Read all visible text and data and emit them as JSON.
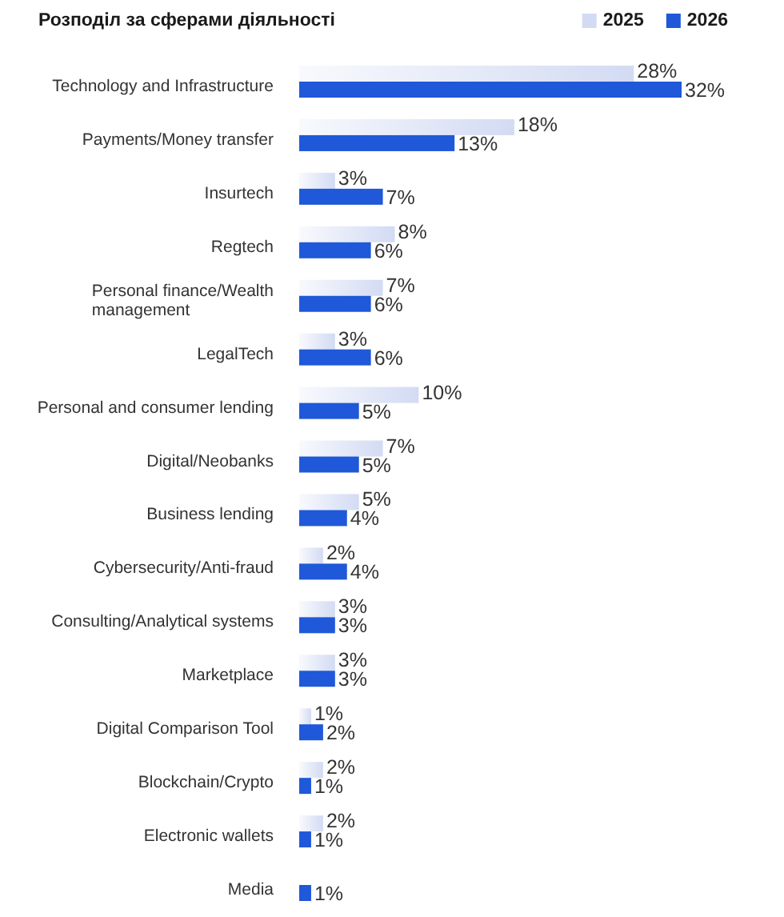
{
  "chart_data": {
    "type": "bar",
    "orientation": "horizontal",
    "title": "Розподіл за сферами діяльності",
    "legend": "top right",
    "categories": [
      "Technology and Infrastructure",
      "Payments/Money transfer",
      "Insurtech",
      "Regtech",
      "Personal finance/Wealth management",
      "LegalTech",
      "Personal and consumer lending",
      "Digital/Neobanks",
      "Business lending",
      "Cybersecurity/Anti-fraud",
      "Consulting/Analytical systems",
      "Marketplace",
      "Digital Comparison Tool",
      "Blockchain/Crypto",
      "Electronic wallets",
      "Media"
    ],
    "series": [
      {
        "name": "2025",
        "color": "#d3dbf3",
        "values": [
          28,
          18,
          3,
          8,
          7,
          3,
          10,
          7,
          5,
          2,
          3,
          3,
          1,
          2,
          2,
          null
        ],
        "value_labels": [
          "28%",
          "18%",
          "3%",
          "8%",
          "7%",
          "3%",
          "10%",
          "7%",
          "5%",
          "2%",
          "3%",
          "3%",
          "1%",
          "2%",
          "2%",
          null
        ]
      },
      {
        "name": "2026",
        "color": "#1f58d8",
        "values": [
          32,
          13,
          7,
          6,
          6,
          6,
          5,
          5,
          4,
          4,
          3,
          3,
          2,
          1,
          1,
          1
        ],
        "value_labels": [
          "32%",
          "13%",
          "7%",
          "6%",
          "6%",
          "6%",
          "5%",
          "5%",
          "4%",
          "4%",
          "3%",
          "3%",
          "2%",
          "1%",
          "1%",
          "1%"
        ]
      }
    ]
  }
}
